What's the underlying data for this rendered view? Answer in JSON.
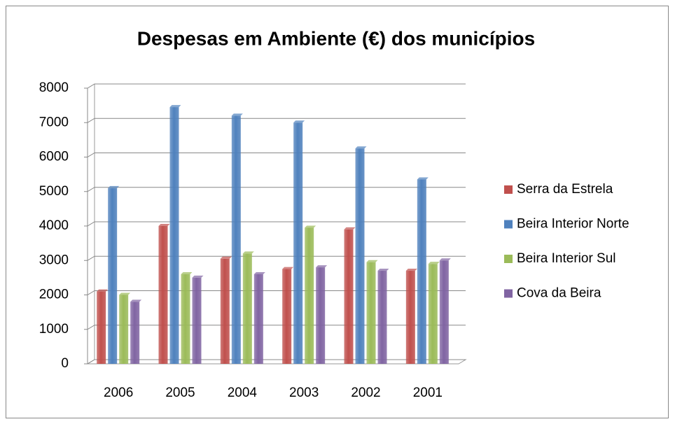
{
  "chart_data": {
    "type": "bar",
    "title": "Despesas em Ambiente (€) dos municípios",
    "categories": [
      "2006",
      "2005",
      "2004",
      "2003",
      "2002",
      "2001"
    ],
    "series": [
      {
        "name": "Serra da Estrela",
        "color": "#c0504d",
        "values": [
          2100,
          4000,
          3050,
          2750,
          3900,
          2700
        ]
      },
      {
        "name": "Beira Interior Norte",
        "color": "#4f81bd",
        "values": [
          5100,
          7450,
          7200,
          7000,
          6250,
          5350
        ]
      },
      {
        "name": "Beira Interior Sul",
        "color": "#9bbb59",
        "values": [
          2000,
          2600,
          3200,
          3950,
          2950,
          2900
        ]
      },
      {
        "name": "Cova da Beira",
        "color": "#8064a2",
        "values": [
          1800,
          2500,
          2600,
          2800,
          2700,
          3000
        ]
      }
    ],
    "ylim": [
      0,
      8000
    ],
    "yticks": [
      0,
      1000,
      2000,
      3000,
      4000,
      5000,
      6000,
      7000,
      8000
    ],
    "grid": true,
    "legend": "right"
  }
}
